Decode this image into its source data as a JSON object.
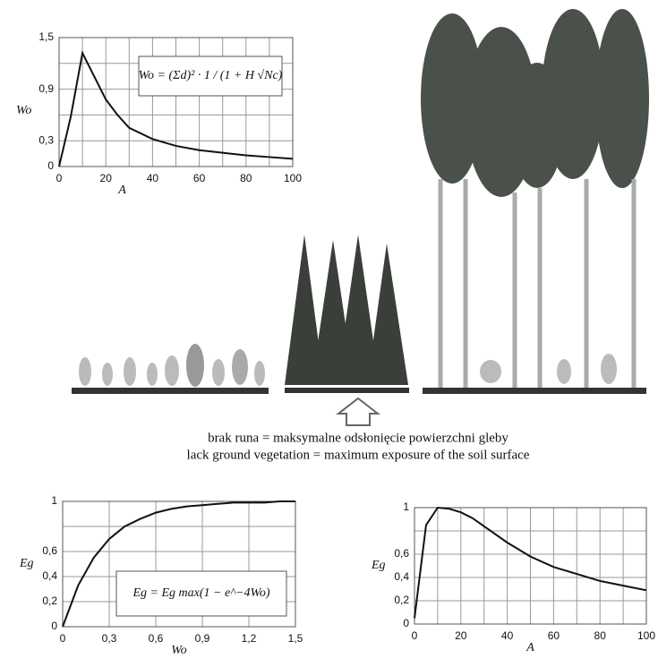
{
  "chart_data": [
    {
      "type": "line",
      "x_label": "A",
      "y_label": "Wo",
      "formula": "Wo = (Σd)² · 1 / (1 + H √Nc)",
      "x": [
        0,
        5,
        10,
        15,
        20,
        25,
        30,
        40,
        50,
        60,
        70,
        80,
        90,
        100
      ],
      "series": [
        {
          "name": "Wo",
          "color": "#111111",
          "values": [
            0,
            0.58,
            1.32,
            1.05,
            0.78,
            0.6,
            0.45,
            0.32,
            0.24,
            0.19,
            0.16,
            0.13,
            0.11,
            0.09
          ]
        }
      ],
      "xlim": [
        0,
        100
      ],
      "ylim": [
        0,
        1.5
      ],
      "xticks": [
        0,
        20,
        40,
        60,
        80,
        100
      ],
      "yticks": [
        0,
        {
          "value": 0.3,
          "label": "0,3"
        },
        {
          "value": 0.9,
          "label": "0,9"
        },
        {
          "value": 1.5,
          "label": "1,5"
        }
      ],
      "minor_xgrid": [
        10,
        30,
        50,
        70,
        90
      ],
      "minor_ygrid": [
        0.6,
        1.2
      ],
      "grid": true
    },
    {
      "type": "line",
      "x_label": "Wo",
      "y_label": "Eg",
      "formula": "Eg = Eg max(1 − e^−4Wo)",
      "x": [
        0,
        0.1,
        0.2,
        0.3,
        0.4,
        0.5,
        0.6,
        0.7,
        0.8,
        0.9,
        1.0,
        1.1,
        1.2,
        1.3,
        1.4,
        1.5
      ],
      "series": [
        {
          "name": "Eg",
          "color": "#111111",
          "values": [
            0,
            0.33,
            0.55,
            0.7,
            0.8,
            0.86,
            0.91,
            0.94,
            0.96,
            0.97,
            0.98,
            0.99,
            0.99,
            0.99,
            1,
            1
          ]
        }
      ],
      "xlim": [
        0,
        1.5
      ],
      "ylim": [
        0,
        1
      ],
      "xticks": [
        0,
        {
          "value": 0.3,
          "label": "0,3"
        },
        {
          "value": 0.6,
          "label": "0,6"
        },
        {
          "value": 0.9,
          "label": "0,9"
        },
        {
          "value": 1.2,
          "label": "1,2"
        },
        {
          "value": 1.5,
          "label": "1,5"
        }
      ],
      "yticks": [
        0,
        {
          "value": 0.2,
          "label": "0,2"
        },
        {
          "value": 0.4,
          "label": "0,4"
        },
        {
          "value": 0.6,
          "label": "0,6"
        },
        1
      ],
      "minor_xgrid": [],
      "minor_ygrid": [
        0.8
      ],
      "grid": true
    },
    {
      "type": "line",
      "x_label": "A",
      "y_label": "Eg",
      "x": [
        0,
        5,
        10,
        15,
        20,
        25,
        30,
        40,
        50,
        60,
        70,
        80,
        90,
        100
      ],
      "series": [
        {
          "name": "Eg",
          "color": "#111111",
          "values": [
            0.05,
            0.85,
            1.0,
            0.99,
            0.96,
            0.91,
            0.84,
            0.7,
            0.58,
            0.49,
            0.43,
            0.37,
            0.33,
            0.29
          ]
        }
      ],
      "xlim": [
        0,
        100
      ],
      "ylim": [
        0,
        1
      ],
      "xticks": [
        0,
        20,
        40,
        60,
        80,
        100
      ],
      "yticks": [
        0,
        {
          "value": 0.2,
          "label": "0,2"
        },
        {
          "value": 0.4,
          "label": "0,4"
        },
        {
          "value": 0.6,
          "label": "0,6"
        },
        1
      ],
      "minor_xgrid": [
        10,
        30,
        50,
        70,
        90
      ],
      "minor_ygrid": [
        0.8
      ],
      "grid": true
    }
  ],
  "caption": [
    "brak runa = maksymalne odsłonięcie powierzchni gleby",
    "lack ground vegetation = maximum exposure of the soil surface"
  ]
}
